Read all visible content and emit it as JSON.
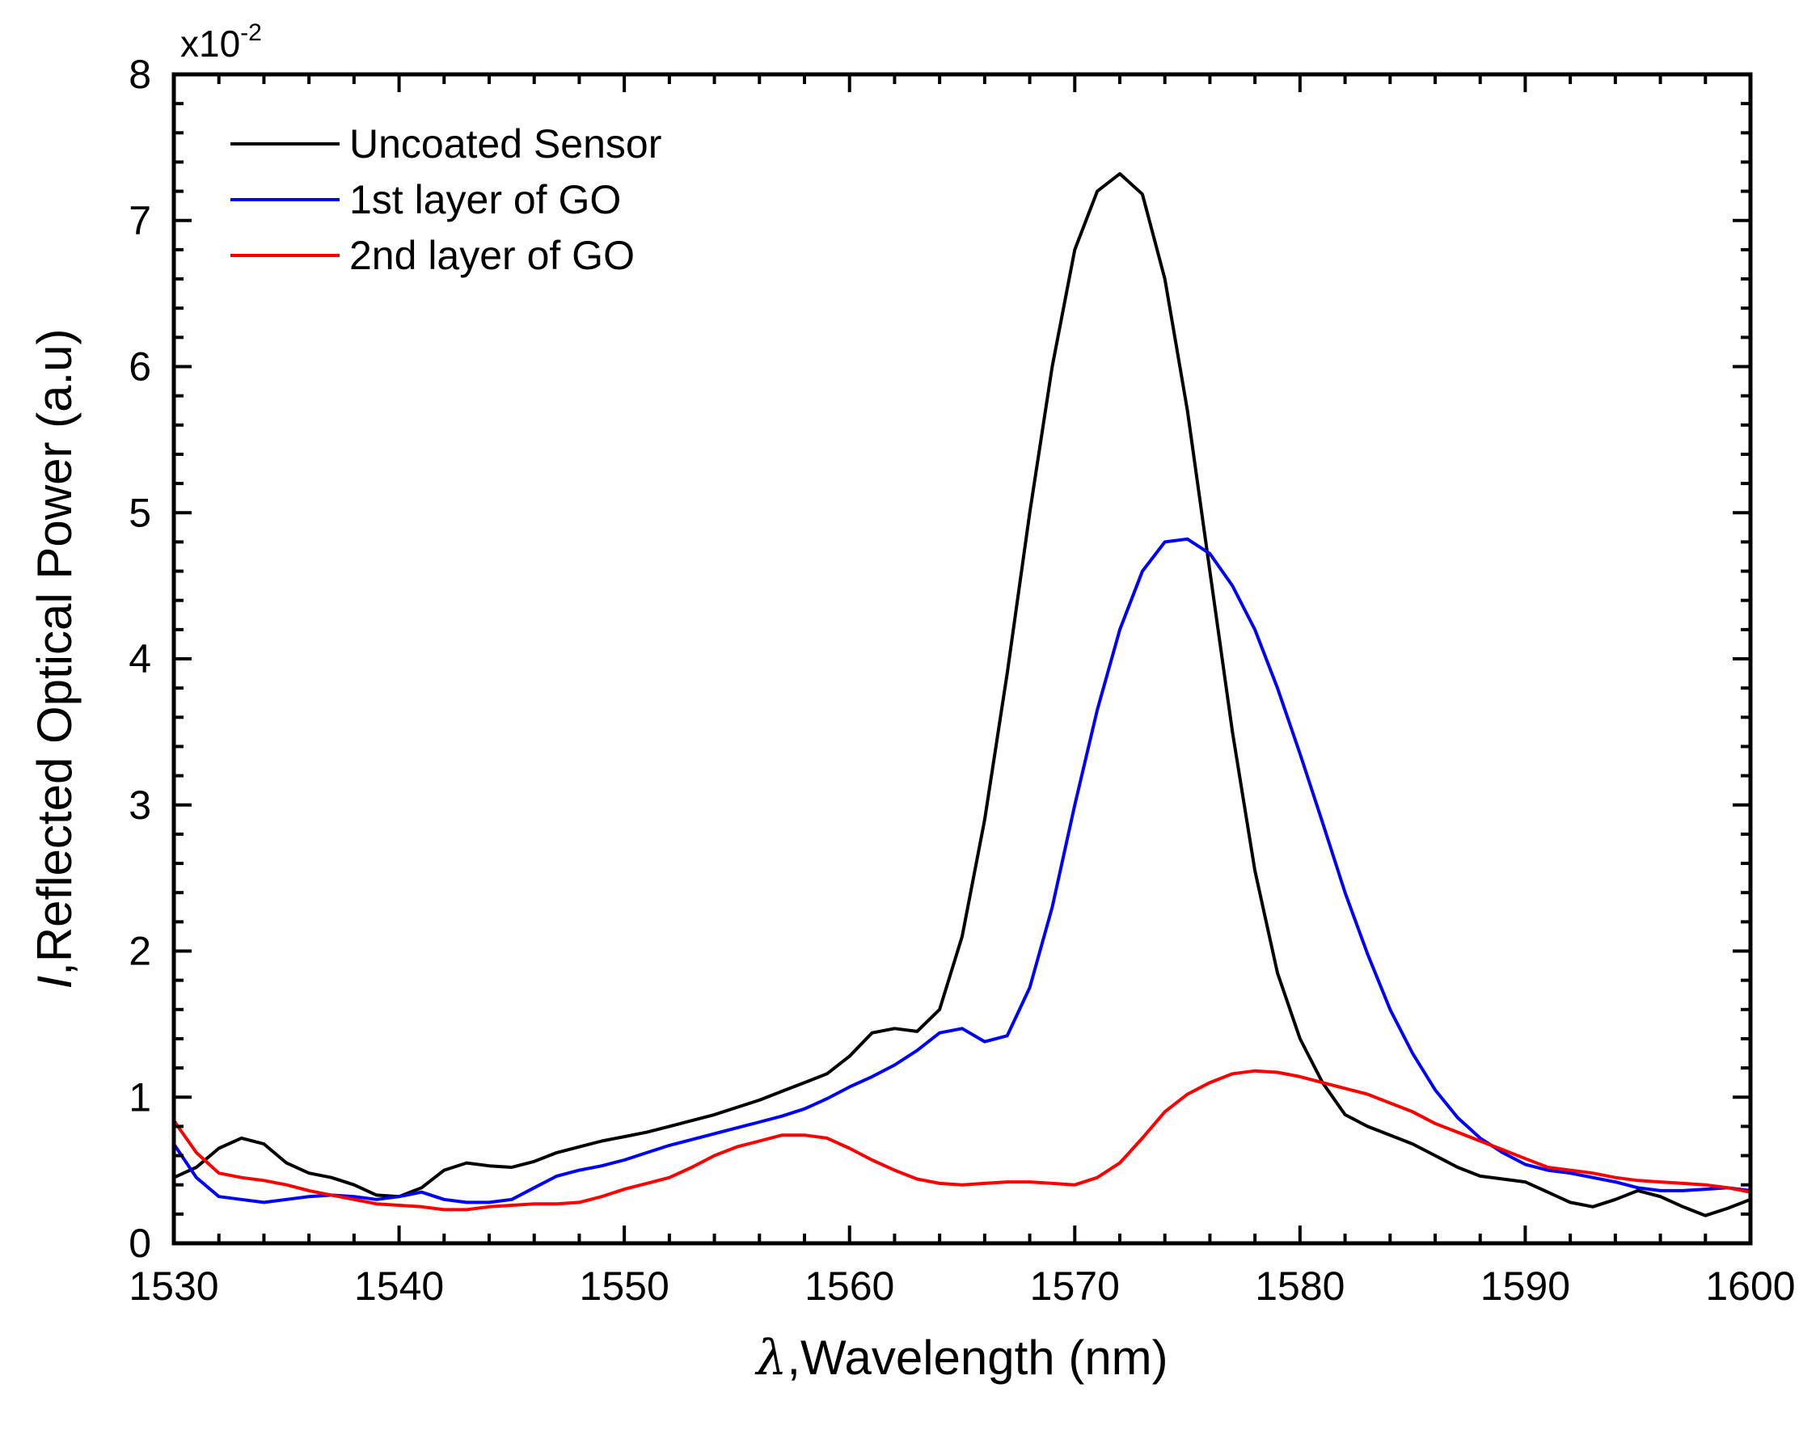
{
  "chart_data": {
    "type": "line",
    "title": "",
    "xlabel_symbol": "λ",
    "xlabel_text": ",Wavelength (nm)",
    "ylabel_symbol": "I",
    "ylabel_text": ",Reflected Optical Power (a.u)",
    "y_exponent_base": "x10",
    "y_exponent_power": "-2",
    "xlim": [
      1530,
      1600
    ],
    "ylim": [
      0,
      8
    ],
    "x_ticks": [
      1530,
      1540,
      1550,
      1560,
      1570,
      1580,
      1590,
      1600
    ],
    "y_ticks": [
      0,
      1,
      2,
      3,
      4,
      5,
      6,
      7,
      8
    ],
    "x_minor_step": 2,
    "y_minor_step": 0.2,
    "grid": false,
    "legend_position": "top-left",
    "series": [
      {
        "name": "Uncoated Sensor",
        "color": "#000000",
        "points": [
          [
            1530,
            0.45
          ],
          [
            1531,
            0.52
          ],
          [
            1532,
            0.65
          ],
          [
            1533,
            0.72
          ],
          [
            1534,
            0.68
          ],
          [
            1535,
            0.55
          ],
          [
            1536,
            0.48
          ],
          [
            1537,
            0.45
          ],
          [
            1538,
            0.4
          ],
          [
            1539,
            0.33
          ],
          [
            1540,
            0.32
          ],
          [
            1541,
            0.38
          ],
          [
            1542,
            0.5
          ],
          [
            1543,
            0.55
          ],
          [
            1544,
            0.53
          ],
          [
            1545,
            0.52
          ],
          [
            1546,
            0.56
          ],
          [
            1547,
            0.62
          ],
          [
            1548,
            0.66
          ],
          [
            1549,
            0.7
          ],
          [
            1550,
            0.73
          ],
          [
            1551,
            0.76
          ],
          [
            1552,
            0.8
          ],
          [
            1553,
            0.84
          ],
          [
            1554,
            0.88
          ],
          [
            1555,
            0.93
          ],
          [
            1556,
            0.98
          ],
          [
            1557,
            1.04
          ],
          [
            1558,
            1.1
          ],
          [
            1559,
            1.16
          ],
          [
            1560,
            1.28
          ],
          [
            1561,
            1.44
          ],
          [
            1562,
            1.47
          ],
          [
            1563,
            1.45
          ],
          [
            1564,
            1.6
          ],
          [
            1565,
            2.1
          ],
          [
            1566,
            2.9
          ],
          [
            1567,
            3.9
          ],
          [
            1568,
            5.0
          ],
          [
            1569,
            6.0
          ],
          [
            1570,
            6.8
          ],
          [
            1571,
            7.2
          ],
          [
            1572,
            7.32
          ],
          [
            1573,
            7.18
          ],
          [
            1574,
            6.6
          ],
          [
            1575,
            5.7
          ],
          [
            1576,
            4.6
          ],
          [
            1577,
            3.5
          ],
          [
            1578,
            2.55
          ],
          [
            1579,
            1.85
          ],
          [
            1580,
            1.4
          ],
          [
            1581,
            1.1
          ],
          [
            1582,
            0.88
          ],
          [
            1583,
            0.8
          ],
          [
            1584,
            0.74
          ],
          [
            1585,
            0.68
          ],
          [
            1586,
            0.6
          ],
          [
            1587,
            0.52
          ],
          [
            1588,
            0.46
          ],
          [
            1589,
            0.44
          ],
          [
            1590,
            0.42
          ],
          [
            1591,
            0.35
          ],
          [
            1592,
            0.28
          ],
          [
            1593,
            0.25
          ],
          [
            1594,
            0.3
          ],
          [
            1595,
            0.36
          ],
          [
            1596,
            0.32
          ],
          [
            1597,
            0.25
          ],
          [
            1598,
            0.19
          ],
          [
            1599,
            0.24
          ],
          [
            1600,
            0.3
          ]
        ]
      },
      {
        "name": "1st layer of GO",
        "color": "#0000ff",
        "points": [
          [
            1530,
            0.68
          ],
          [
            1531,
            0.45
          ],
          [
            1532,
            0.32
          ],
          [
            1533,
            0.3
          ],
          [
            1534,
            0.28
          ],
          [
            1535,
            0.3
          ],
          [
            1536,
            0.32
          ],
          [
            1537,
            0.33
          ],
          [
            1538,
            0.32
          ],
          [
            1539,
            0.3
          ],
          [
            1540,
            0.32
          ],
          [
            1541,
            0.35
          ],
          [
            1542,
            0.3
          ],
          [
            1543,
            0.28
          ],
          [
            1544,
            0.28
          ],
          [
            1545,
            0.3
          ],
          [
            1546,
            0.38
          ],
          [
            1547,
            0.46
          ],
          [
            1548,
            0.5
          ],
          [
            1549,
            0.53
          ],
          [
            1550,
            0.57
          ],
          [
            1551,
            0.62
          ],
          [
            1552,
            0.67
          ],
          [
            1553,
            0.71
          ],
          [
            1554,
            0.75
          ],
          [
            1555,
            0.79
          ],
          [
            1556,
            0.83
          ],
          [
            1557,
            0.87
          ],
          [
            1558,
            0.92
          ],
          [
            1559,
            0.99
          ],
          [
            1560,
            1.07
          ],
          [
            1561,
            1.14
          ],
          [
            1562,
            1.22
          ],
          [
            1563,
            1.32
          ],
          [
            1564,
            1.44
          ],
          [
            1565,
            1.47
          ],
          [
            1566,
            1.38
          ],
          [
            1567,
            1.42
          ],
          [
            1568,
            1.75
          ],
          [
            1569,
            2.3
          ],
          [
            1570,
            3.0
          ],
          [
            1571,
            3.65
          ],
          [
            1572,
            4.2
          ],
          [
            1573,
            4.6
          ],
          [
            1574,
            4.8
          ],
          [
            1575,
            4.82
          ],
          [
            1576,
            4.72
          ],
          [
            1577,
            4.5
          ],
          [
            1578,
            4.2
          ],
          [
            1579,
            3.8
          ],
          [
            1580,
            3.35
          ],
          [
            1581,
            2.88
          ],
          [
            1582,
            2.4
          ],
          [
            1583,
            1.98
          ],
          [
            1584,
            1.6
          ],
          [
            1585,
            1.3
          ],
          [
            1586,
            1.05
          ],
          [
            1587,
            0.86
          ],
          [
            1588,
            0.72
          ],
          [
            1589,
            0.62
          ],
          [
            1590,
            0.54
          ],
          [
            1591,
            0.5
          ],
          [
            1592,
            0.48
          ],
          [
            1593,
            0.45
          ],
          [
            1594,
            0.42
          ],
          [
            1595,
            0.38
          ],
          [
            1596,
            0.36
          ],
          [
            1597,
            0.36
          ],
          [
            1598,
            0.37
          ],
          [
            1599,
            0.38
          ],
          [
            1600,
            0.36
          ]
        ]
      },
      {
        "name": "2nd layer of GO",
        "color": "#ff0000",
        "points": [
          [
            1530,
            0.84
          ],
          [
            1531,
            0.62
          ],
          [
            1532,
            0.48
          ],
          [
            1533,
            0.45
          ],
          [
            1534,
            0.43
          ],
          [
            1535,
            0.4
          ],
          [
            1536,
            0.36
          ],
          [
            1537,
            0.33
          ],
          [
            1538,
            0.3
          ],
          [
            1539,
            0.27
          ],
          [
            1540,
            0.26
          ],
          [
            1541,
            0.25
          ],
          [
            1542,
            0.23
          ],
          [
            1543,
            0.23
          ],
          [
            1544,
            0.25
          ],
          [
            1545,
            0.26
          ],
          [
            1546,
            0.27
          ],
          [
            1547,
            0.27
          ],
          [
            1548,
            0.28
          ],
          [
            1549,
            0.32
          ],
          [
            1550,
            0.37
          ],
          [
            1551,
            0.41
          ],
          [
            1552,
            0.45
          ],
          [
            1553,
            0.52
          ],
          [
            1554,
            0.6
          ],
          [
            1555,
            0.66
          ],
          [
            1556,
            0.7
          ],
          [
            1557,
            0.74
          ],
          [
            1558,
            0.74
          ],
          [
            1559,
            0.72
          ],
          [
            1560,
            0.65
          ],
          [
            1561,
            0.57
          ],
          [
            1562,
            0.5
          ],
          [
            1563,
            0.44
          ],
          [
            1564,
            0.41
          ],
          [
            1565,
            0.4
          ],
          [
            1566,
            0.41
          ],
          [
            1567,
            0.42
          ],
          [
            1568,
            0.42
          ],
          [
            1569,
            0.41
          ],
          [
            1570,
            0.4
          ],
          [
            1571,
            0.45
          ],
          [
            1572,
            0.55
          ],
          [
            1573,
            0.72
          ],
          [
            1574,
            0.9
          ],
          [
            1575,
            1.02
          ],
          [
            1576,
            1.1
          ],
          [
            1577,
            1.16
          ],
          [
            1578,
            1.18
          ],
          [
            1579,
            1.17
          ],
          [
            1580,
            1.14
          ],
          [
            1581,
            1.1
          ],
          [
            1582,
            1.06
          ],
          [
            1583,
            1.02
          ],
          [
            1584,
            0.96
          ],
          [
            1585,
            0.9
          ],
          [
            1586,
            0.82
          ],
          [
            1587,
            0.76
          ],
          [
            1588,
            0.7
          ],
          [
            1589,
            0.64
          ],
          [
            1590,
            0.58
          ],
          [
            1591,
            0.52
          ],
          [
            1592,
            0.5
          ],
          [
            1593,
            0.48
          ],
          [
            1594,
            0.45
          ],
          [
            1595,
            0.43
          ],
          [
            1596,
            0.42
          ],
          [
            1597,
            0.41
          ],
          [
            1598,
            0.4
          ],
          [
            1599,
            0.38
          ],
          [
            1600,
            0.35
          ]
        ]
      }
    ]
  }
}
